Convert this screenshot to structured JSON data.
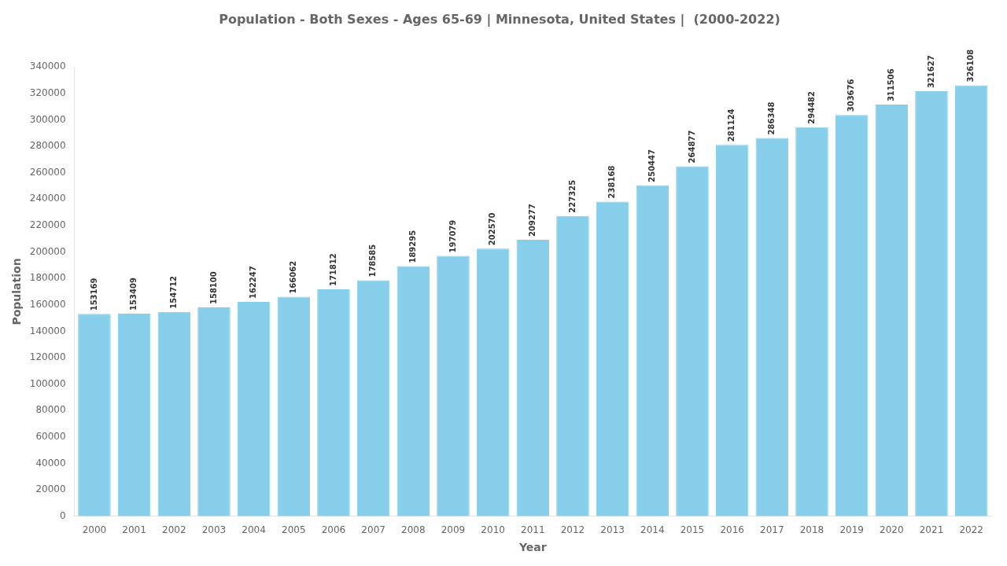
{
  "chart_data": {
    "type": "bar",
    "title": "Population - Both Sexes - Ages 65-69 | Minnesota, United States |  (2000-2022)",
    "x_label": "Year",
    "y_label": "Population",
    "categories": [
      "2000",
      "2001",
      "2002",
      "2003",
      "2004",
      "2005",
      "2006",
      "2007",
      "2008",
      "2009",
      "2010",
      "2011",
      "2012",
      "2013",
      "2014",
      "2015",
      "2016",
      "2017",
      "2018",
      "2019",
      "2020",
      "2021",
      "2022"
    ],
    "values": [
      153169,
      153409,
      154712,
      158100,
      162247,
      166062,
      171812,
      178585,
      189295,
      197079,
      202570,
      209277,
      227325,
      238168,
      250447,
      264877,
      281124,
      286348,
      294482,
      303676,
      311506,
      321627,
      326108
    ],
    "color": "#87CEEB",
    "ylim": [
      0,
      340000
    ],
    "yticks": [
      0,
      20000,
      40000,
      60000,
      80000,
      100000,
      120000,
      140000,
      160000,
      180000,
      200000,
      220000,
      240000,
      260000,
      280000,
      300000,
      320000,
      340000
    ],
    "grid": false,
    "data_labels": true
  }
}
